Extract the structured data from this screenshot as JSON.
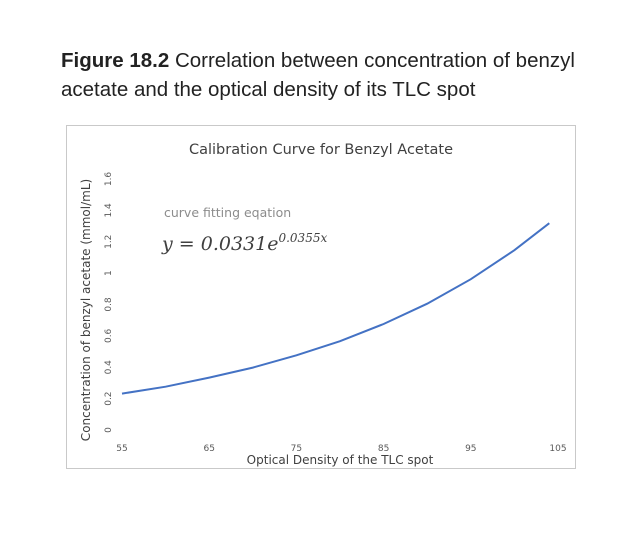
{
  "figure": {
    "number": "Figure 18.2",
    "caption": "Correlation between concentration of benzyl acetate and the optical density of its TLC spot"
  },
  "chart_data": {
    "type": "line",
    "title": "Calibration Curve for Benzyl Acetate",
    "xlabel": "Optical Density of the TLC spot",
    "ylabel": "Concentration of benzyl acetate (mmol/mL)",
    "xlim": [
      55,
      105
    ],
    "ylim": [
      0,
      1.6
    ],
    "x_ticks": [
      "55",
      "65",
      "75",
      "85",
      "95",
      "105"
    ],
    "y_ticks": [
      "0",
      "0.2",
      "0.4",
      "0.6",
      "0.8",
      "1",
      "1.2",
      "1.4",
      "1.6"
    ],
    "grid": false,
    "series_color": "#4472c4",
    "annotation": {
      "label": "curve fitting eqation",
      "equation": "y = 0.0331e",
      "exponent": "0.0355x"
    },
    "series": [
      {
        "x": [
          55,
          60,
          65,
          70,
          75,
          80,
          85,
          90,
          95,
          100,
          104
        ],
        "y": [
          0.232,
          0.276,
          0.334,
          0.398,
          0.476,
          0.566,
          0.676,
          0.805,
          0.961,
          1.146,
          1.318
        ]
      }
    ]
  }
}
